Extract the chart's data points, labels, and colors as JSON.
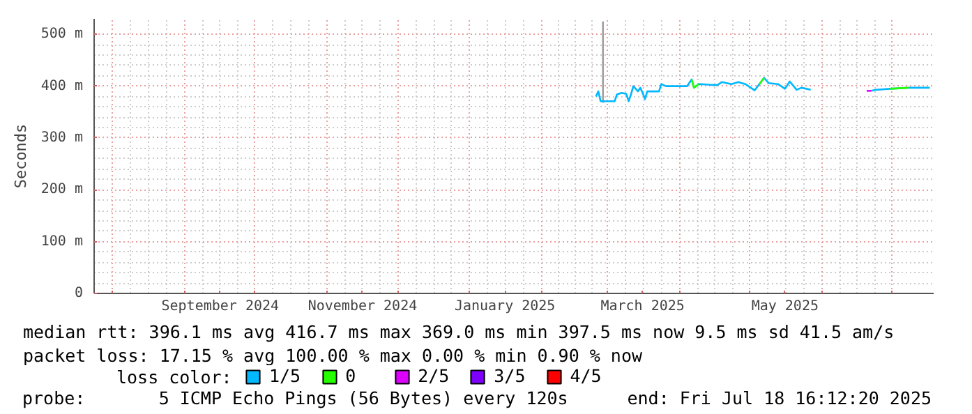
{
  "chart_data": {
    "type": "line",
    "ylabel": "Seconds",
    "legend_title": "loss color:",
    "legend": "bottom left",
    "grid": true,
    "marker": "none",
    "line_style": "solid",
    "xlim": [
      "2024-07-24",
      "2025-07-18T16:12"
    ],
    "ylim": [
      0,
      530
    ],
    "xticks": [
      {
        "value": "2024-08-01",
        "label": null
      },
      {
        "value": "2024-09-01",
        "label": null
      },
      {
        "value": "2024-09-16",
        "label": "September 2024"
      },
      {
        "value": "2024-10-01",
        "label": null
      },
      {
        "value": "2024-11-01",
        "label": null
      },
      {
        "value": "2024-11-16",
        "label": "November 2024"
      },
      {
        "value": "2024-12-01",
        "label": null
      },
      {
        "value": "2025-01-01",
        "label": null
      },
      {
        "value": "2025-01-16",
        "label": "January 2025"
      },
      {
        "value": "2025-02-01",
        "label": null
      },
      {
        "value": "2025-03-01",
        "label": null
      },
      {
        "value": "2025-03-16",
        "label": "March 2025"
      },
      {
        "value": "2025-04-01",
        "label": null
      },
      {
        "value": "2025-05-01",
        "label": null
      },
      {
        "value": "2025-05-16",
        "label": "May 2025"
      },
      {
        "value": "2025-06-01",
        "label": null
      },
      {
        "value": "2025-07-01",
        "label": null
      }
    ],
    "yticks": [
      {
        "value": 0,
        "label": "0"
      },
      {
        "value": 100,
        "label": "100 m"
      },
      {
        "value": 200,
        "label": "200 m"
      },
      {
        "value": 300,
        "label": "300 m"
      },
      {
        "value": 400,
        "label": "400 m"
      },
      {
        "value": 500,
        "label": "500 m"
      }
    ],
    "series": [
      {
        "color": "#a0a0a0",
        "x": [
          "2025-02-27",
          "2025-02-27"
        ],
        "values": [
          368,
          525
        ]
      },
      {
        "name": "1/5",
        "color": "#00b8ff",
        "x": [
          "2025-02-24",
          "2025-02-25",
          "2025-02-26",
          "2025-03-01",
          "2025-03-04",
          "2025-03-05",
          "2025-03-07",
          "2025-03-09",
          "2025-03-10",
          "2025-03-11",
          "2025-03-12",
          "2025-03-14",
          "2025-03-15",
          "2025-03-16",
          "2025-03-17",
          "2025-03-18",
          "2025-03-23",
          "2025-03-24",
          "2025-03-26",
          "2025-04-04",
          "2025-04-06",
          "2025-04-07",
          "2025-04-09",
          "2025-04-17",
          "2025-04-19",
          "2025-04-23",
          "2025-04-26",
          "2025-04-29",
          "2025-05-03",
          "2025-05-05",
          "2025-05-07",
          "2025-05-09",
          "2025-05-13",
          "2025-05-16",
          "2025-05-18",
          "2025-05-21",
          "2025-05-23",
          "2025-05-27",
          "2025-06-10",
          "2025-06-22",
          "2025-06-24",
          "2025-06-30",
          "2025-07-08",
          "2025-07-17"
        ],
        "values": [
          380,
          390,
          371,
          371,
          371,
          384,
          387,
          385,
          371,
          384,
          400,
          390,
          397,
          387,
          375,
          390,
          390,
          404,
          400,
          400,
          413,
          397,
          404,
          402,
          408,
          404,
          408,
          404,
          392,
          404,
          416,
          406,
          404,
          395,
          409,
          393,
          397,
          393,
          null,
          391,
          393,
          395,
          397,
          397
        ]
      },
      {
        "name": "0",
        "color": "#26ff00",
        "x": [
          "2025-04-06",
          "2025-04-07",
          "2025-04-09",
          "2025-04-20",
          "2025-05-05",
          "2025-05-07",
          "2025-06-10",
          "2025-06-30",
          "2025-07-08"
        ],
        "values": [
          413,
          397,
          404,
          null,
          404,
          416,
          null,
          395,
          397
        ]
      },
      {
        "name": "2/5",
        "color": "#dd00ff",
        "x": [
          "2025-06-20",
          "2025-06-22"
        ],
        "values": [
          391,
          391
        ]
      },
      {
        "name": "3/5",
        "color": "#7e00ff"
      },
      {
        "name": "4/5",
        "color": "#ff0000"
      }
    ],
    "annotations": [
      "median rtt:  396.1 ms avg  416.7 ms max  369.0 ms min  397.5 ms now  9.5 ms sd  41.5   am/s",
      "packet loss: 17.15 % avg  100.00 % max  0.00 % min  0.90 % now",
      "probe:       5 ICMP Echo Pings (56 Bytes) every 120s",
      "end: Fri Jul 18 16:12:20 2025"
    ]
  }
}
